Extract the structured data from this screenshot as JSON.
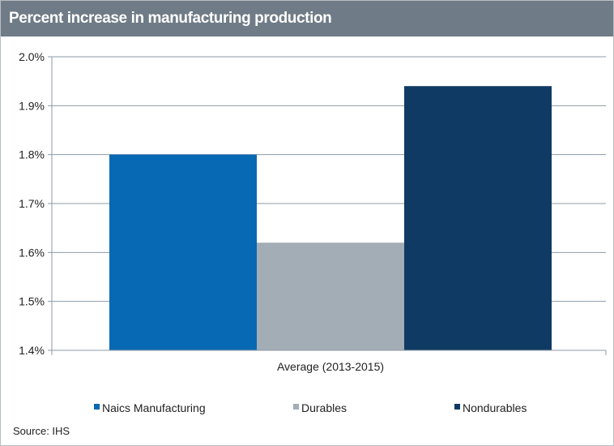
{
  "title": "Percent increase in manufacturing production",
  "source": "Source: IHS",
  "colors": {
    "title_bar": "#6f7b86",
    "title_text": "#ffffff",
    "gridline": "#8d99a6",
    "axis": "#8d99a6"
  },
  "chart_data": {
    "type": "bar",
    "title": "Percent increase in manufacturing production",
    "categories": [
      "Average (2013-2015)"
    ],
    "series": [
      {
        "name": "Naics Manufacturing",
        "color": "#0768b3",
        "values": [
          1.8
        ]
      },
      {
        "name": "Durables",
        "color": "#a3adb5",
        "values": [
          1.62
        ]
      },
      {
        "name": "Nondurables",
        "color": "#0f3a63",
        "values": [
          1.94
        ]
      }
    ],
    "ylim": [
      1.4,
      2.0
    ],
    "yticks": [
      1.4,
      1.5,
      1.6,
      1.7,
      1.8,
      1.9,
      2.0
    ],
    "ytick_labels": [
      "1.4%",
      "1.5%",
      "1.6%",
      "1.7%",
      "1.8%",
      "1.9%",
      "2.0%"
    ],
    "xlabel": "",
    "ylabel": "",
    "grid": true,
    "legend_position": "bottom"
  }
}
